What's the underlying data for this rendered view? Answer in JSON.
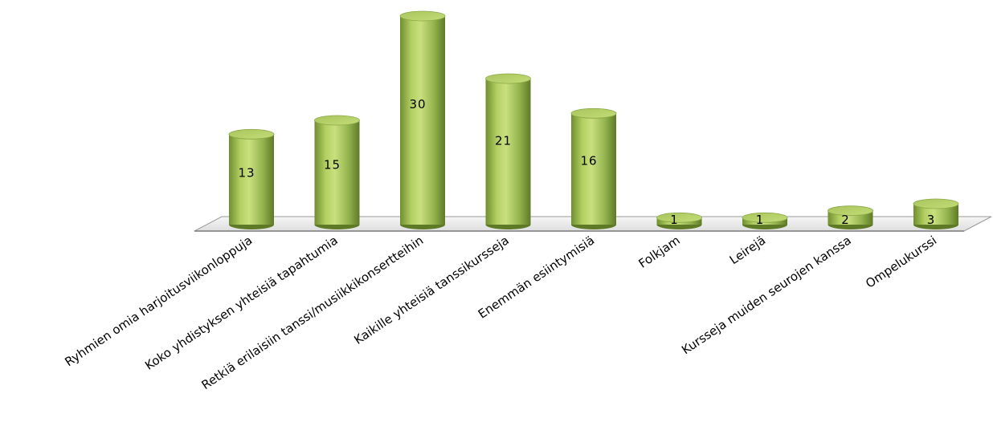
{
  "chart_data": {
    "type": "bar",
    "style": "3d-cylinder",
    "title": "",
    "xlabel": "",
    "ylabel": "",
    "grid": false,
    "legend": "none",
    "categories": [
      "Ryhmien omia harjoitusviikonloppuja",
      "Koko yhdistyksen yhteisiä tapahtumia",
      "Retkiä erilaisiin tanssi/musiikkikonsertteihin",
      "Kaikille yhteisiä tanssikursseja",
      "Enemmän esiintymisiä",
      "Folkjam",
      "Leirejä",
      "Kursseja muiden seurojen kanssa",
      "Ompelukurssi"
    ],
    "values": [
      13,
      15,
      30,
      21,
      16,
      1,
      1,
      2,
      3
    ],
    "data_labels": [
      "13",
      "15",
      "30",
      "21",
      "16",
      "1",
      "1",
      "2",
      "3"
    ],
    "ylim": [
      0,
      30
    ],
    "colors": {
      "bar_light": "#c9e07e",
      "bar_mid": "#9bbb59",
      "bar_dark": "#5e7a26",
      "bar_top": "#b4cf6a",
      "floor": "#ececec",
      "floor_edge": "#9a9a9a",
      "text": "#000000"
    }
  }
}
